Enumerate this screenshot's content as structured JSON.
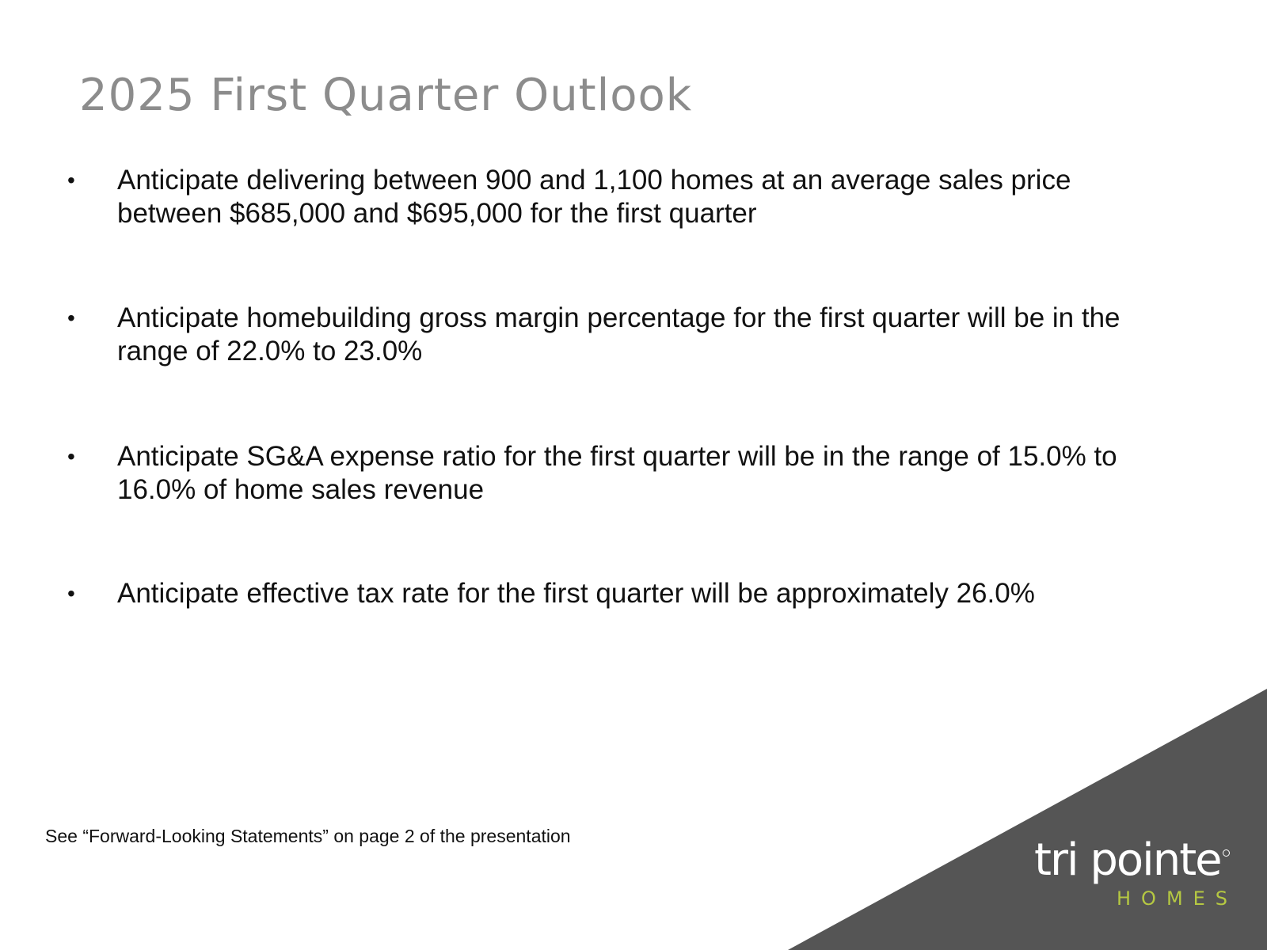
{
  "slide": {
    "title": "2025 First Quarter Outlook",
    "bullet_symbol": "•",
    "bullets": [
      "Anticipate delivering between 900 and 1,100 homes at an average sales price between $685,000 and $695,000 for the first quarter",
      "Anticipate homebuilding gross margin percentage for the first quarter will be in the range of 22.0% to 23.0%",
      "Anticipate SG&A expense ratio for the first quarter will be in the range of 15.0% to 16.0% of home sales revenue",
      "Anticipate effective tax rate for the first quarter will be approximately 26.0%"
    ],
    "footnote": "See “Forward-Looking Statements” on page 2 of the presentation"
  },
  "logo": {
    "main": "tri pointe",
    "sub": "HOMES"
  },
  "colors": {
    "title": "#8c8c8c",
    "text": "#111111",
    "corner": "#555555",
    "logo_main": "#ffffff",
    "logo_accent": "#b5c842"
  }
}
